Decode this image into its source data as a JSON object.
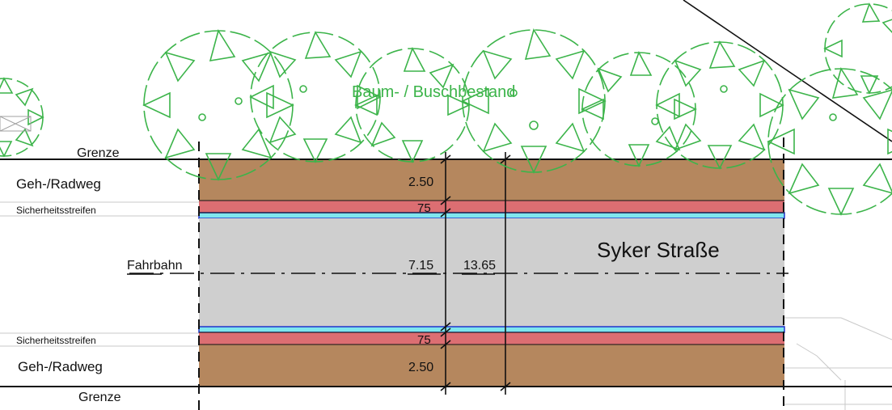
{
  "labels": {
    "vegetation": "Baum- / Buschbestand",
    "street_name": "Syker Straße",
    "boundary_top": "Grenze",
    "boundary_bottom": "Grenze",
    "path_top": "Geh-/Radweg",
    "path_bottom": "Geh-/Radweg",
    "safety_strip_top": "Sicherheitsstreifen",
    "safety_strip_bottom": "Sicherheitsstreifen",
    "carriageway": "Fahrbahn"
  },
  "dimensions": {
    "path_top_width": "2.50",
    "safety_strip_top_width": "75",
    "carriageway_width": "7.15",
    "total_width": "13.65",
    "safety_strip_bottom_width": "75",
    "path_bottom_width": "2.50"
  },
  "colors": {
    "footway": "#b5875e",
    "safety_strip": "#dc6e72",
    "curb": "#7fe6ee",
    "curb_edge": "#2233cc",
    "carriageway": "#cfcfcf",
    "vegetation": "#3cb44a",
    "line": "#111111"
  }
}
